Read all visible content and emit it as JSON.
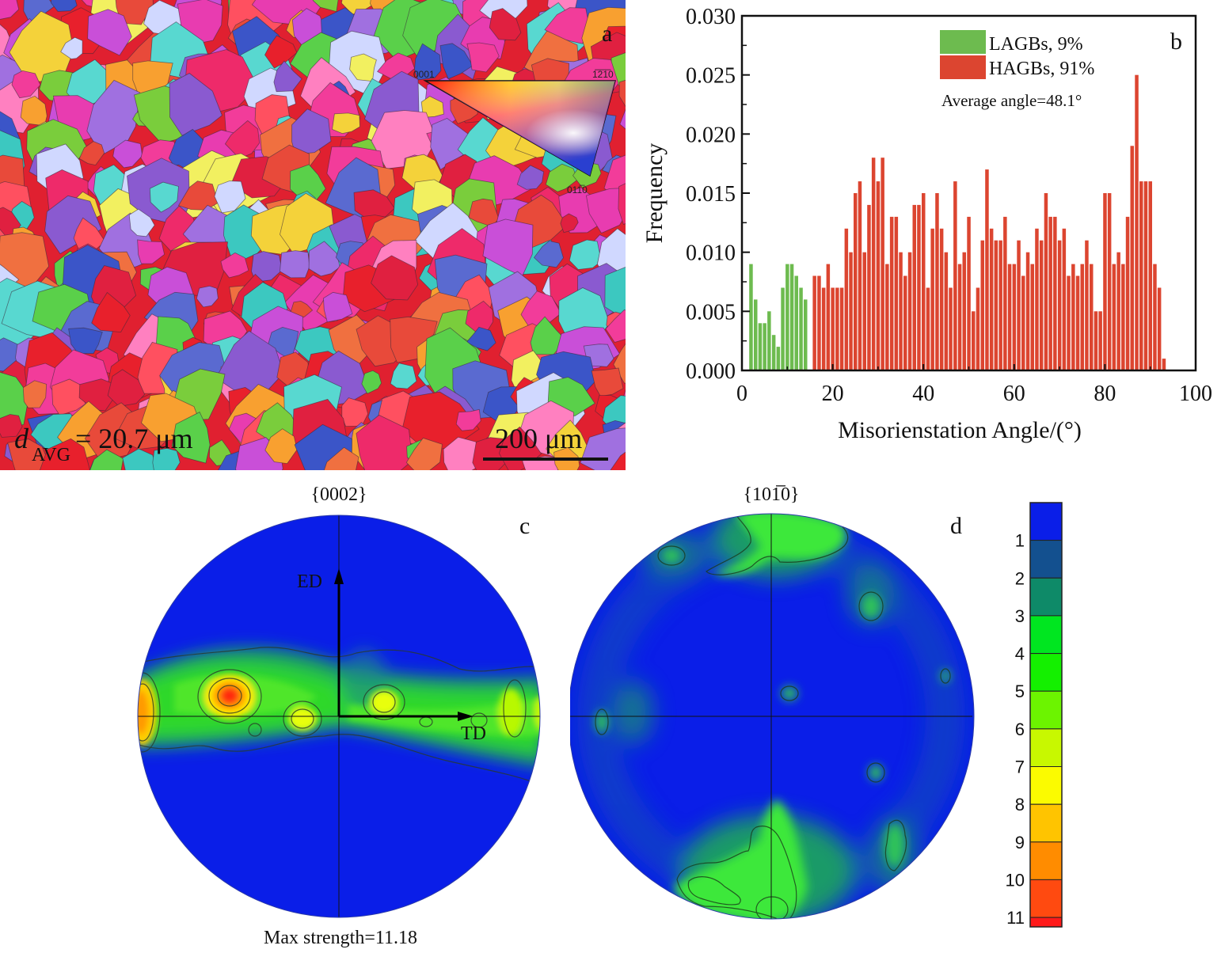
{
  "panel_a": {
    "label": "a",
    "grain_size_prefix": "d",
    "grain_size_subscript": "AVG",
    "grain_size_value": "= 20.7 μm",
    "scale_bar_label": "200 μm",
    "ipf_legend": {
      "corner_top_left": "0001",
      "corner_top_right": "1̅2̅1̅0",
      "corner_bottom": "011̅0"
    }
  },
  "chart_data": [
    {
      "type": "bar",
      "panel": "b",
      "title": "",
      "xlabel": "Misorienstation Angle/(°)",
      "ylabel": "Frequency",
      "xlim": [
        0,
        100
      ],
      "ylim": [
        0,
        0.03
      ],
      "xticks": [
        "0",
        "20",
        "40",
        "60",
        "80",
        "100"
      ],
      "yticks": [
        "0.000",
        "0.005",
        "0.010",
        "0.015",
        "0.020",
        "0.025",
        "0.030"
      ],
      "legend_position": "top-right",
      "annotation": "Average angle=48.1°",
      "series": [
        {
          "name": "LAGBs, 9%",
          "color": "#6dbb4f",
          "x": [
            2,
            3,
            4,
            5,
            6,
            7,
            8,
            9,
            10,
            11,
            12,
            13,
            14
          ],
          "values": [
            0.009,
            0.006,
            0.004,
            0.004,
            0.005,
            0.003,
            0.002,
            0.007,
            0.009,
            0.009,
            0.008,
            0.007,
            0.006
          ]
        },
        {
          "name": "HAGBs, 91%",
          "color": "#dc4530",
          "x": [
            16,
            17,
            18,
            19,
            20,
            21,
            22,
            23,
            24,
            25,
            26,
            27,
            28,
            29,
            30,
            31,
            32,
            33,
            34,
            35,
            36,
            37,
            38,
            39,
            40,
            41,
            42,
            43,
            44,
            45,
            46,
            47,
            48,
            49,
            50,
            51,
            52,
            53,
            54,
            55,
            56,
            57,
            58,
            59,
            60,
            61,
            62,
            63,
            64,
            65,
            66,
            67,
            68,
            69,
            70,
            71,
            72,
            73,
            74,
            75,
            76,
            77,
            78,
            79,
            80,
            81,
            82,
            83,
            84,
            85,
            86,
            87,
            88,
            89,
            90,
            91,
            92,
            93
          ],
          "values": [
            0.008,
            0.008,
            0.007,
            0.009,
            0.007,
            0.007,
            0.007,
            0.012,
            0.01,
            0.015,
            0.016,
            0.01,
            0.014,
            0.018,
            0.016,
            0.018,
            0.009,
            0.013,
            0.013,
            0.01,
            0.008,
            0.01,
            0.014,
            0.014,
            0.015,
            0.007,
            0.012,
            0.015,
            0.012,
            0.01,
            0.007,
            0.016,
            0.009,
            0.01,
            0.013,
            0.005,
            0.007,
            0.011,
            0.017,
            0.012,
            0.011,
            0.011,
            0.013,
            0.009,
            0.009,
            0.011,
            0.008,
            0.01,
            0.009,
            0.012,
            0.011,
            0.015,
            0.013,
            0.013,
            0.011,
            0.012,
            0.008,
            0.009,
            0.008,
            0.009,
            0.011,
            0.009,
            0.005,
            0.005,
            0.015,
            0.015,
            0.009,
            0.01,
            0.009,
            0.013,
            0.019,
            0.025,
            0.016,
            0.016,
            0.016,
            0.009,
            0.007,
            0.001
          ]
        }
      ]
    }
  ],
  "panel_b": {
    "label": "b"
  },
  "panel_c": {
    "label": "c",
    "title": "{0002}",
    "axis_up": "ED",
    "axis_right": "TD",
    "max_strength": "Max strength=11.18"
  },
  "panel_d": {
    "label": "d",
    "title": "{101̅0}"
  },
  "colorbar": {
    "levels": [
      "1",
      "2",
      "3",
      "4",
      "5",
      "6",
      "7",
      "8",
      "9",
      "10",
      "11"
    ],
    "colors": [
      "#0a1ee8",
      "#13508f",
      "#0e8a68",
      "#00e620",
      "#14f000",
      "#6cf400",
      "#c8f800",
      "#fbfb00",
      "#ffc400",
      "#ff8c00",
      "#ff4a10",
      "#ff1a1a"
    ]
  }
}
